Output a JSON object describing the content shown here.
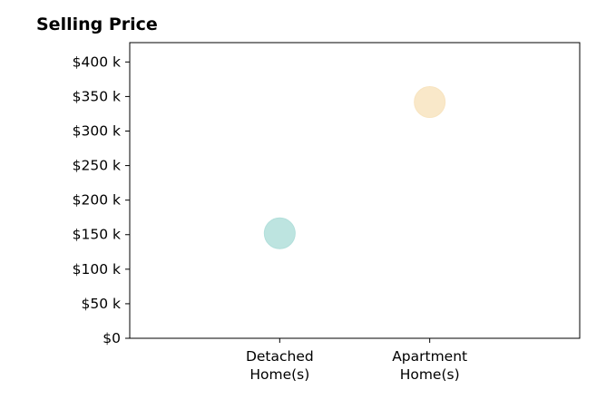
{
  "chart_data": {
    "type": "scatter",
    "title": "Selling Price",
    "xlabel": "",
    "ylabel": "",
    "categories": [
      "Detached\nHome(s)",
      "Apartment\nHome(s)"
    ],
    "x_positions": [
      1,
      2
    ],
    "xlim": [
      0,
      3
    ],
    "values": [
      152000,
      342000
    ],
    "colors": [
      "#b2dfdb",
      "#f8e4c0"
    ],
    "ylim": [
      0,
      428000
    ],
    "yticks": [
      0,
      50000,
      100000,
      150000,
      200000,
      250000,
      300000,
      350000,
      400000
    ],
    "ytick_labels": [
      "$0",
      "$50 k",
      "$100 k",
      "$150 k",
      "$200 k",
      "$250 k",
      "$300 k",
      "$350 k",
      "$400 k"
    ],
    "grid": false,
    "legend": "none"
  }
}
